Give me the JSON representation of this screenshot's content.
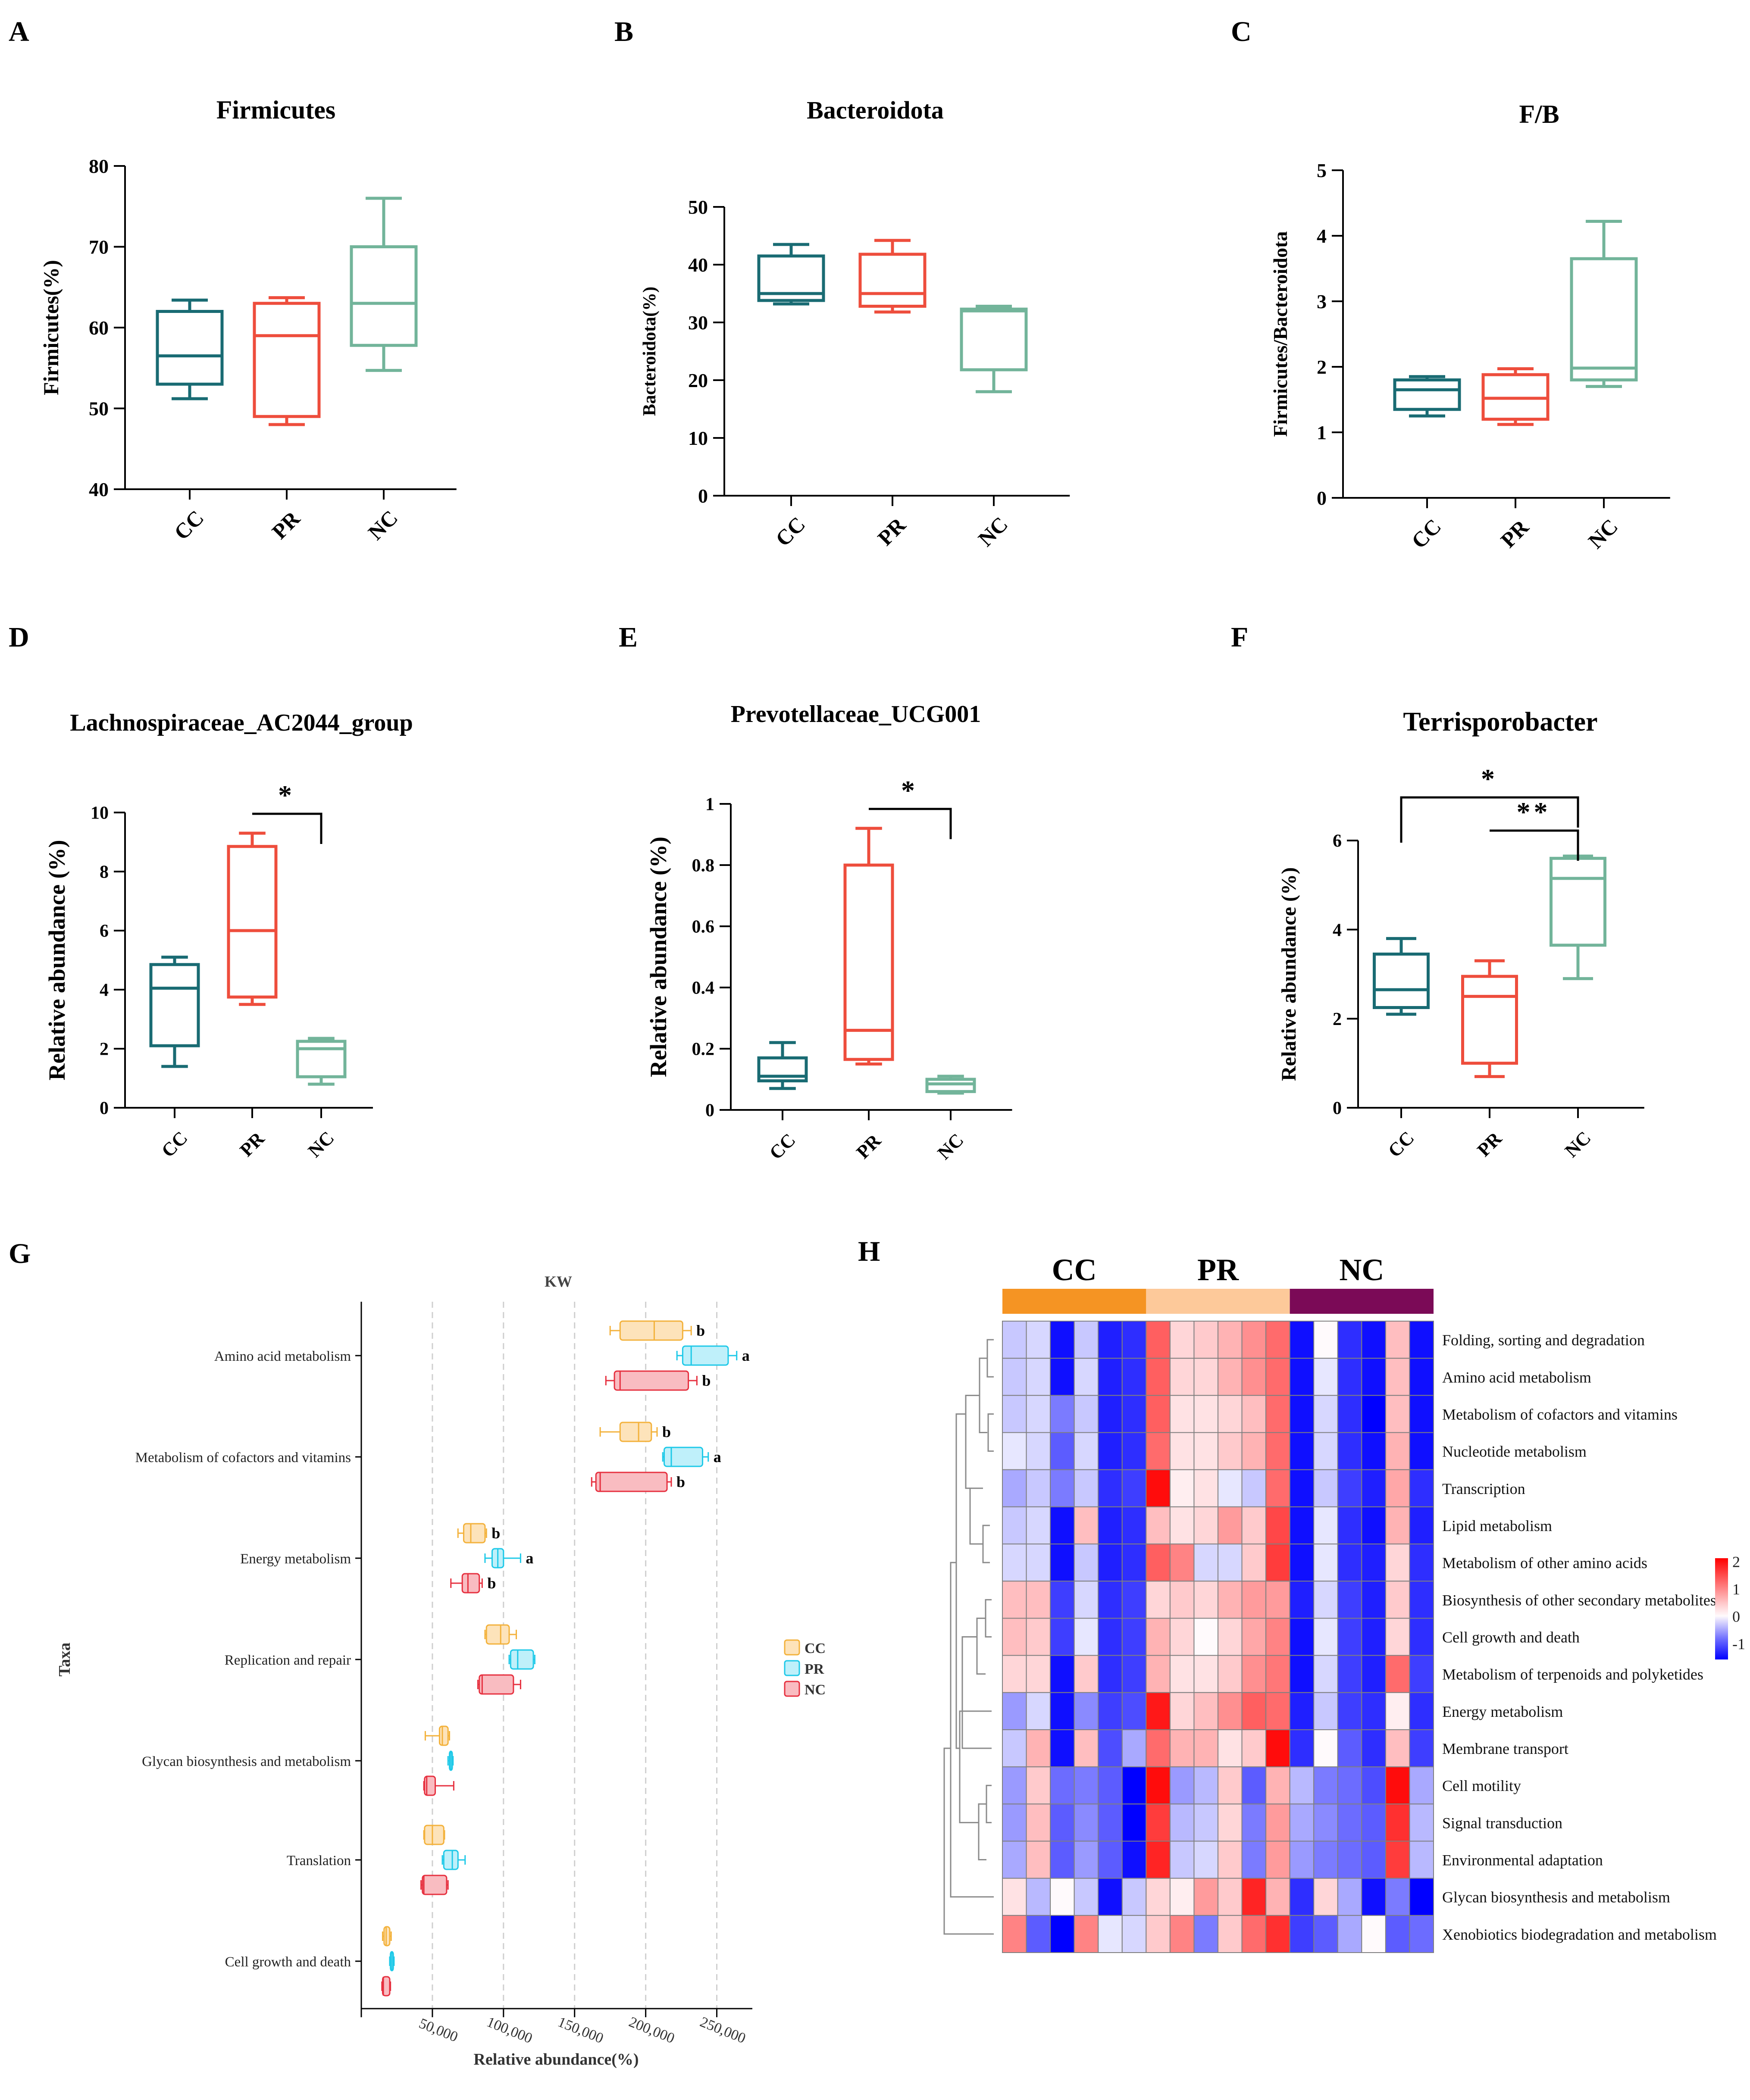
{
  "colors": {
    "CC": "#196b73",
    "PR": "#ee4d3c",
    "NC": "#72b49a",
    "G_CC": "#f3b23c",
    "G_PR": "#1ec9e8",
    "G_NC": "#e6303f",
    "G_CC_fill": "#fde3ba",
    "G_PR_fill": "#bff0fa",
    "G_NC_fill": "#f9bcc1",
    "band_CC": "#f59423",
    "band_PR": "#fdc99a",
    "band_NC": "#7b0a57"
  },
  "chart_data": [
    {
      "panel": "A",
      "type": "box",
      "title": "Firmicutes",
      "ylabel": "Firmicutes(%)",
      "ylim": [
        40,
        80
      ],
      "yticks": [
        40,
        50,
        60,
        70,
        80
      ],
      "groups": [
        {
          "name": "CC",
          "min": 51.2,
          "q1": 53.0,
          "median": 56.5,
          "q3": 62.0,
          "max": 63.4
        },
        {
          "name": "PR",
          "min": 48.0,
          "q1": 49.0,
          "median": 59.0,
          "q3": 63.0,
          "max": 63.7
        },
        {
          "name": "NC",
          "min": 54.7,
          "q1": 57.8,
          "median": 63.0,
          "q3": 70.0,
          "max": 76.0
        }
      ],
      "brackets": []
    },
    {
      "panel": "B",
      "type": "box",
      "title": "Bacteroidota",
      "ylabel": "Bacteroidota(%)",
      "ylim": [
        0,
        50
      ],
      "yticks": [
        0,
        10,
        20,
        30,
        40,
        50
      ],
      "groups": [
        {
          "name": "CC",
          "min": 33.2,
          "q1": 33.8,
          "median": 35.0,
          "q3": 41.5,
          "max": 43.5
        },
        {
          "name": "PR",
          "min": 31.8,
          "q1": 32.8,
          "median": 35.0,
          "q3": 41.8,
          "max": 44.2
        },
        {
          "name": "NC",
          "min": 18.0,
          "q1": 21.8,
          "median": 32.0,
          "q3": 32.3,
          "max": 32.8
        }
      ],
      "brackets": []
    },
    {
      "panel": "C",
      "type": "box",
      "title": "F/B",
      "ylabel": "Firmicutes/Bacteroidota",
      "ylim": [
        0,
        5
      ],
      "yticks": [
        0,
        1,
        2,
        3,
        4,
        5
      ],
      "groups": [
        {
          "name": "CC",
          "min": 1.25,
          "q1": 1.35,
          "median": 1.65,
          "q3": 1.8,
          "max": 1.85
        },
        {
          "name": "PR",
          "min": 1.12,
          "q1": 1.2,
          "median": 1.52,
          "q3": 1.88,
          "max": 1.97
        },
        {
          "name": "NC",
          "min": 1.7,
          "q1": 1.8,
          "median": 1.98,
          "q3": 3.65,
          "max": 4.22
        }
      ],
      "brackets": []
    },
    {
      "panel": "D",
      "type": "box",
      "title": "Lachnospiraceae_AC2044_group",
      "ylabel": "Relative abundance (%)",
      "ylim": [
        0,
        10
      ],
      "yticks": [
        0,
        2,
        4,
        6,
        8,
        10
      ],
      "groups": [
        {
          "name": "CC",
          "min": 1.4,
          "q1": 2.1,
          "median": 4.05,
          "q3": 4.85,
          "max": 5.1
        },
        {
          "name": "PR",
          "min": 3.5,
          "q1": 3.75,
          "median": 6.0,
          "q3": 8.85,
          "max": 9.3
        },
        {
          "name": "NC",
          "min": 0.8,
          "q1": 1.05,
          "median": 2.0,
          "q3": 2.25,
          "max": 2.35
        }
      ],
      "brackets": [
        {
          "from": 1,
          "to": 2,
          "label": "*",
          "level": 0
        }
      ]
    },
    {
      "panel": "E",
      "type": "box",
      "title": "Prevotellaceae_UCG001",
      "ylabel": "Relative abundance (%)",
      "ylim": [
        0,
        1.0
      ],
      "yticks": [
        0.0,
        0.2,
        0.4,
        0.6,
        0.8,
        1.0
      ],
      "groups": [
        {
          "name": "CC",
          "min": 0.07,
          "q1": 0.095,
          "median": 0.11,
          "q3": 0.17,
          "max": 0.22
        },
        {
          "name": "PR",
          "min": 0.15,
          "q1": 0.165,
          "median": 0.26,
          "q3": 0.8,
          "max": 0.92
        },
        {
          "name": "NC",
          "min": 0.055,
          "q1": 0.06,
          "median": 0.085,
          "q3": 0.1,
          "max": 0.11
        }
      ],
      "brackets": [
        {
          "from": 1,
          "to": 2,
          "label": "*",
          "level": 0
        }
      ]
    },
    {
      "panel": "F",
      "type": "box",
      "title": "Terrisporobacter",
      "ylabel": "Relative abundance (%)",
      "ylim": [
        0,
        6
      ],
      "yticks": [
        0,
        2,
        4,
        6
      ],
      "groups": [
        {
          "name": "CC",
          "min": 2.1,
          "q1": 2.25,
          "median": 2.65,
          "q3": 3.45,
          "max": 3.8
        },
        {
          "name": "PR",
          "min": 0.7,
          "q1": 1.0,
          "median": 2.5,
          "q3": 2.95,
          "max": 3.3
        },
        {
          "name": "NC",
          "min": 2.9,
          "q1": 3.65,
          "median": 5.15,
          "q3": 5.6,
          "max": 5.65
        }
      ],
      "brackets": [
        {
          "from": 1,
          "to": 2,
          "label": "**",
          "level": 0
        },
        {
          "from": 0,
          "to": 2,
          "label": "*",
          "level": 1
        }
      ]
    },
    {
      "panel": "G",
      "type": "box-horizontal",
      "title": "KW",
      "xlabel": "Relative abundance(%)",
      "ylabel": "Taxa",
      "xlim": [
        0,
        275000
      ],
      "xticks": [
        50000,
        100000,
        150000,
        200000,
        250000
      ],
      "xtick_labels": [
        "50,000",
        "100,000",
        "150,000",
        "200,000",
        "250,000"
      ],
      "legend": [
        "CC",
        "PR",
        "NC"
      ],
      "categories": [
        {
          "name": "Amino acid metabolism",
          "boxes": [
            {
              "group": "CC",
              "min": 175000,
              "q1": 182000,
              "median": 206000,
              "q3": 226000,
              "max": 232000,
              "letter": "b"
            },
            {
              "group": "PR",
              "min": 222000,
              "q1": 226000,
              "median": 232000,
              "q3": 258000,
              "max": 264000,
              "letter": "a"
            },
            {
              "group": "NC",
              "min": 172000,
              "q1": 178000,
              "median": 182000,
              "q3": 230000,
              "max": 236000,
              "letter": "b"
            }
          ]
        },
        {
          "name": "Metabolism of cofactors and vitamins",
          "boxes": [
            {
              "group": "CC",
              "min": 168000,
              "q1": 182000,
              "median": 195000,
              "q3": 204000,
              "max": 208000,
              "letter": "b"
            },
            {
              "group": "PR",
              "min": 212000,
              "q1": 213000,
              "median": 218000,
              "q3": 240000,
              "max": 244000,
              "letter": "a"
            },
            {
              "group": "NC",
              "min": 162000,
              "q1": 165000,
              "median": 168000,
              "q3": 215000,
              "max": 218000,
              "letter": "b"
            }
          ]
        },
        {
          "name": "Energy metabolism",
          "boxes": [
            {
              "group": "CC",
              "min": 68000,
              "q1": 72000,
              "median": 77000,
              "q3": 87000,
              "max": 88000,
              "letter": "b"
            },
            {
              "group": "PR",
              "min": 87000,
              "q1": 92000,
              "median": 96000,
              "q3": 100000,
              "max": 112000,
              "letter": "a"
            },
            {
              "group": "NC",
              "min": 63000,
              "q1": 71000,
              "median": 75000,
              "q3": 83000,
              "max": 85000,
              "letter": "b"
            }
          ]
        },
        {
          "name": "Replication and repair",
          "boxes": [
            {
              "group": "CC",
              "min": 87000,
              "q1": 88000,
              "median": 98000,
              "q3": 104000,
              "max": 109000,
              "letter": ""
            },
            {
              "group": "PR",
              "min": 104000,
              "q1": 105000,
              "median": 110000,
              "q3": 121000,
              "max": 122000,
              "letter": ""
            },
            {
              "group": "NC",
              "min": 82000,
              "q1": 83000,
              "median": 85000,
              "q3": 107000,
              "max": 112000,
              "letter": ""
            }
          ]
        },
        {
          "name": "Glycan biosynthesis and metabolism",
          "boxes": [
            {
              "group": "CC",
              "min": 45000,
              "q1": 55000,
              "median": 57000,
              "q3": 61000,
              "max": 62000,
              "letter": ""
            },
            {
              "group": "PR",
              "min": 61000,
              "q1": 62000,
              "median": 63000,
              "q3": 64000,
              "max": 64500,
              "letter": ""
            },
            {
              "group": "NC",
              "min": 44000,
              "q1": 44500,
              "median": 46000,
              "q3": 52000,
              "max": 65000,
              "letter": ""
            }
          ]
        },
        {
          "name": "Translation",
          "boxes": [
            {
              "group": "CC",
              "min": 44000,
              "q1": 44500,
              "median": 50000,
              "q3": 58000,
              "max": 58500,
              "letter": ""
            },
            {
              "group": "PR",
              "min": 57000,
              "q1": 58000,
              "median": 64000,
              "q3": 68000,
              "max": 73000,
              "letter": ""
            },
            {
              "group": "NC",
              "min": 42000,
              "q1": 43000,
              "median": 44000,
              "q3": 60000,
              "max": 61000,
              "letter": ""
            }
          ]
        },
        {
          "name": "Cell growth and death",
          "boxes": [
            {
              "group": "CC",
              "min": 15000,
              "q1": 16000,
              "median": 17500,
              "q3": 20000,
              "max": 21000,
              "letter": ""
            },
            {
              "group": "PR",
              "min": 20000,
              "q1": 20500,
              "median": 21500,
              "q3": 22500,
              "max": 23000,
              "letter": ""
            },
            {
              "group": "NC",
              "min": 14500,
              "q1": 15000,
              "median": 15500,
              "q3": 20000,
              "max": 20500,
              "letter": ""
            }
          ]
        }
      ]
    },
    {
      "panel": "H",
      "type": "heatmap",
      "column_groups": [
        {
          "name": "CC",
          "count": 6
        },
        {
          "name": "PR",
          "count": 6
        },
        {
          "name": "NC",
          "count": 6
        }
      ],
      "rows": [
        "Folding, sorting and degradation",
        "Amino acid metabolism",
        "Metabolism of cofactors and vitamins",
        "Nucleotide metabolism",
        "Transcription",
        "Lipid metabolism",
        "Metabolism of other amino acids",
        "Biosynthesis of other secondary metabolites",
        "Cell growth and death",
        "Metabolism of terpenoids and polyketides",
        "Energy metabolism",
        "Membrane transport",
        "Cell motility",
        "Signal transduction",
        "Environmental adaptation",
        "Glycan biosynthesis and metabolism",
        "Xenobiotics biodegradation and metabolism"
      ],
      "values": [
        [
          -0.3,
          -0.2,
          -1.5,
          -0.3,
          -1.4,
          -1.3,
          1.3,
          0.3,
          0.4,
          0.6,
          0.9,
          1.2,
          -1.5,
          0.0,
          -1.3,
          -1.5,
          0.5,
          -1.5
        ],
        [
          -0.3,
          -0.2,
          -1.5,
          -0.2,
          -1.4,
          -1.3,
          1.3,
          0.3,
          0.3,
          0.6,
          0.9,
          1.2,
          -1.5,
          -0.1,
          -1.3,
          -1.5,
          0.5,
          -1.5
        ],
        [
          -0.3,
          -0.2,
          -0.8,
          -0.3,
          -1.4,
          -1.3,
          1.3,
          0.2,
          0.2,
          0.3,
          0.5,
          1.2,
          -1.5,
          -0.2,
          -1.3,
          -1.6,
          0.5,
          -1.5
        ],
        [
          -0.1,
          -0.2,
          -1.0,
          -0.2,
          -1.4,
          -1.3,
          1.2,
          0.2,
          0.2,
          0.4,
          0.6,
          1.2,
          -1.5,
          -0.2,
          -1.3,
          -1.5,
          0.6,
          -1.5
        ],
        [
          -0.5,
          -0.3,
          -0.8,
          -0.3,
          -1.3,
          -1.2,
          2.0,
          0.1,
          0.2,
          -0.1,
          -0.3,
          1.2,
          -1.5,
          -0.3,
          -1.2,
          -1.4,
          0.7,
          -1.3
        ],
        [
          -0.3,
          -0.2,
          -1.5,
          0.5,
          -1.4,
          -1.3,
          0.5,
          0.2,
          0.3,
          0.8,
          0.4,
          1.5,
          -1.5,
          -0.1,
          -1.3,
          -1.5,
          0.6,
          -1.4
        ],
        [
          -0.2,
          -0.2,
          -1.5,
          -0.3,
          -1.4,
          -1.3,
          1.3,
          1.0,
          -0.2,
          -0.2,
          0.4,
          1.6,
          -1.5,
          -0.1,
          -1.3,
          -1.4,
          0.3,
          -1.3
        ],
        [
          0.5,
          0.5,
          -1.2,
          -0.2,
          -1.3,
          -1.2,
          0.3,
          0.4,
          0.3,
          0.6,
          0.8,
          0.8,
          -1.4,
          -0.2,
          -1.2,
          -1.4,
          0.4,
          -1.3
        ],
        [
          0.5,
          0.4,
          -1.2,
          -0.1,
          -1.3,
          -1.2,
          0.6,
          0.3,
          0.0,
          0.3,
          0.7,
          1.0,
          -1.5,
          -0.1,
          -1.2,
          -1.4,
          0.3,
          -1.3
        ],
        [
          0.3,
          0.3,
          -1.5,
          0.4,
          -1.3,
          -1.2,
          0.6,
          0.2,
          0.2,
          0.4,
          0.9,
          1.1,
          -1.5,
          -0.2,
          -1.2,
          -1.4,
          1.2,
          -1.2
        ],
        [
          -0.6,
          -0.2,
          -1.5,
          -0.7,
          -1.2,
          -1.1,
          1.9,
          0.3,
          0.5,
          0.9,
          1.3,
          1.2,
          -1.4,
          -0.3,
          -1.2,
          -1.3,
          0.1,
          -1.3
        ],
        [
          -0.3,
          0.6,
          -1.5,
          0.5,
          -1.1,
          -0.5,
          1.2,
          0.6,
          0.6,
          0.2,
          0.4,
          2.0,
          -1.3,
          0.0,
          -1.0,
          -1.3,
          0.5,
          -1.2
        ],
        [
          -0.6,
          0.4,
          -0.9,
          -0.8,
          -1.0,
          -1.8,
          2.0,
          -0.6,
          -0.4,
          0.4,
          -1.0,
          0.6,
          -0.4,
          -0.8,
          -0.9,
          -1.1,
          2.0,
          -0.5
        ],
        [
          -0.6,
          0.5,
          -1.0,
          -0.7,
          -1.0,
          -1.6,
          1.6,
          -0.4,
          -0.3,
          0.3,
          -0.8,
          0.8,
          -0.5,
          -0.7,
          -0.9,
          -1.0,
          1.7,
          -0.4
        ],
        [
          -0.5,
          0.5,
          -1.0,
          -0.6,
          -1.0,
          -1.5,
          1.8,
          -0.3,
          -0.2,
          0.4,
          -0.8,
          0.8,
          -0.6,
          -0.8,
          -0.9,
          -1.0,
          1.6,
          -0.4
        ],
        [
          0.2,
          -0.4,
          0.0,
          -0.3,
          -1.5,
          -0.3,
          0.3,
          0.1,
          0.8,
          0.4,
          1.8,
          0.6,
          -1.3,
          0.3,
          -0.5,
          -1.5,
          -0.8,
          -1.6
        ],
        [
          1.0,
          -1.0,
          -1.6,
          1.0,
          -0.1,
          -0.2,
          0.4,
          1.0,
          -0.8,
          0.4,
          1.2,
          1.7,
          -1.2,
          -1.0,
          -0.5,
          0.0,
          -1.0,
          -0.9
        ]
      ],
      "color_scale": {
        "min": -1.6,
        "max": 2.1,
        "ticks": [
          2,
          1,
          0,
          -1
        ]
      }
    }
  ]
}
